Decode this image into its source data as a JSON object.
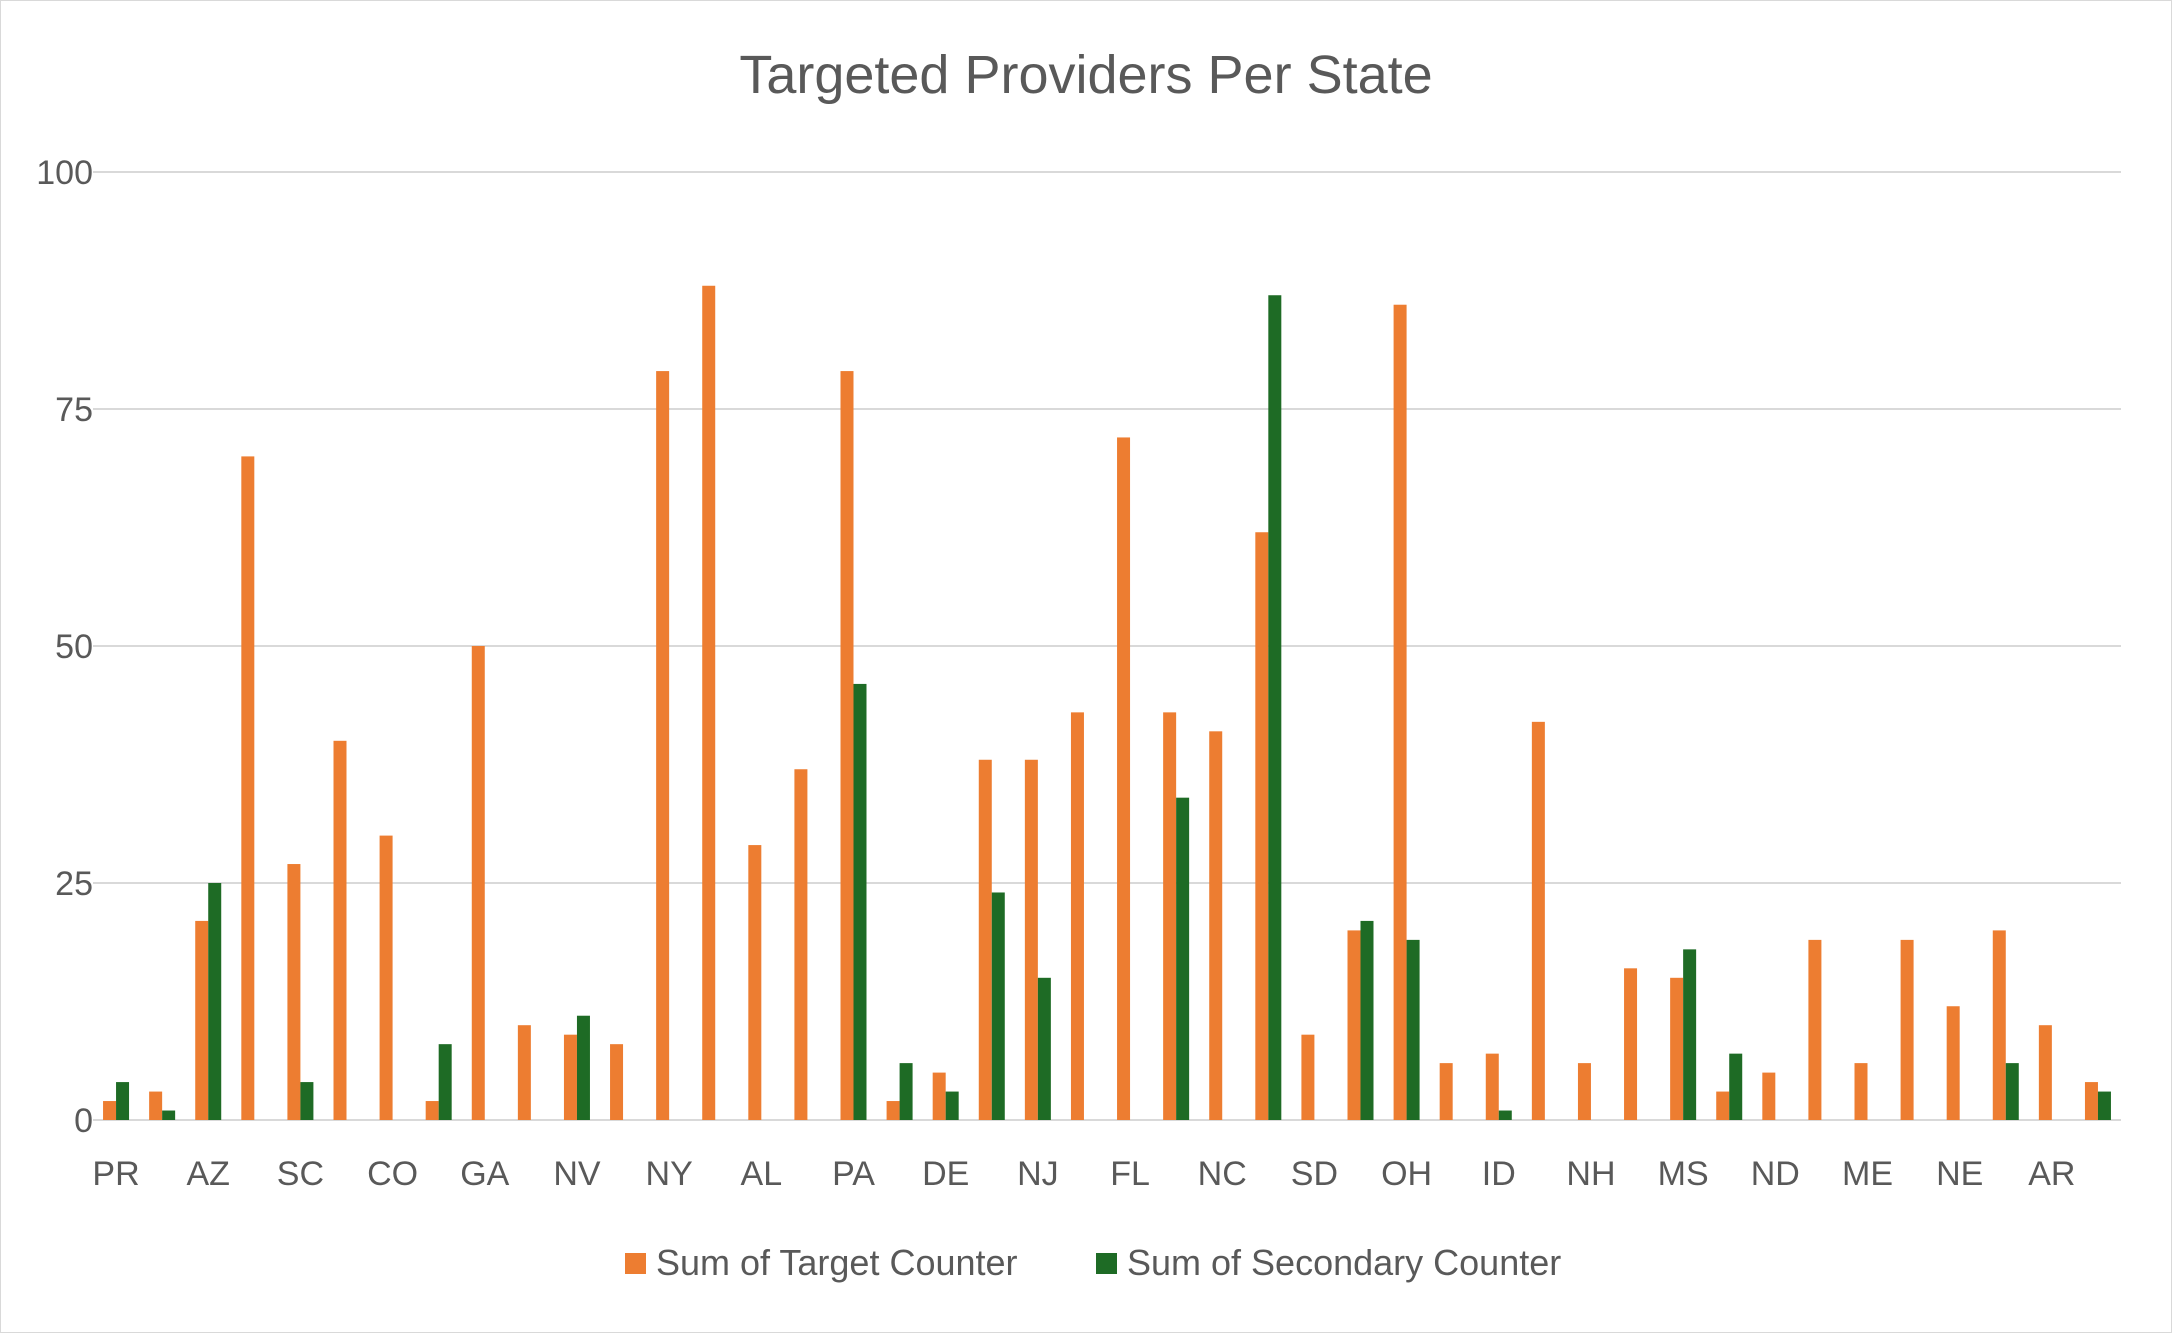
{
  "chart_data": {
    "type": "bar",
    "title": "Targeted Providers Per State",
    "xlabel": "",
    "ylabel": "",
    "ylim": [
      0,
      100
    ],
    "yticks": [
      0,
      25,
      50,
      75,
      100
    ],
    "grid": true,
    "legend_position": "bottom",
    "categories": [
      "PR",
      "",
      "AZ",
      "",
      "SC",
      "",
      "CO",
      "",
      "GA",
      "",
      "NV",
      "",
      "NY",
      "",
      "AL",
      "",
      "PA",
      "",
      "DE",
      "",
      "NJ",
      "",
      "FL",
      "",
      "NC",
      "",
      "SD",
      "",
      "OH",
      "",
      "ID",
      "",
      "NH",
      "",
      "MS",
      "",
      "ND",
      "",
      "ME",
      "",
      "NE",
      "",
      "AR",
      ""
    ],
    "series": [
      {
        "name": "Sum of Target Counter",
        "color": "#ED7D31",
        "values": [
          2,
          3,
          21,
          70,
          27,
          40,
          30,
          2,
          50,
          10,
          9,
          8,
          79,
          88,
          29,
          37,
          79,
          2,
          5,
          38,
          38,
          43,
          72,
          43,
          41,
          62,
          9,
          20,
          86,
          6,
          7,
          42,
          6,
          16,
          15,
          3,
          5,
          19,
          6,
          19,
          12,
          20,
          10,
          4
        ]
      },
      {
        "name": "Sum of Secondary Counter",
        "color": "#1E6B25",
        "values": [
          4,
          1,
          25,
          0,
          4,
          0,
          0,
          8,
          0,
          0,
          11,
          0,
          0,
          0,
          0,
          0,
          46,
          6,
          3,
          24,
          15,
          0,
          0,
          34,
          0,
          87,
          0,
          21,
          19,
          0,
          1,
          0,
          0,
          0,
          18,
          7,
          0,
          0,
          0,
          0,
          0,
          6,
          0,
          3
        ]
      }
    ]
  }
}
